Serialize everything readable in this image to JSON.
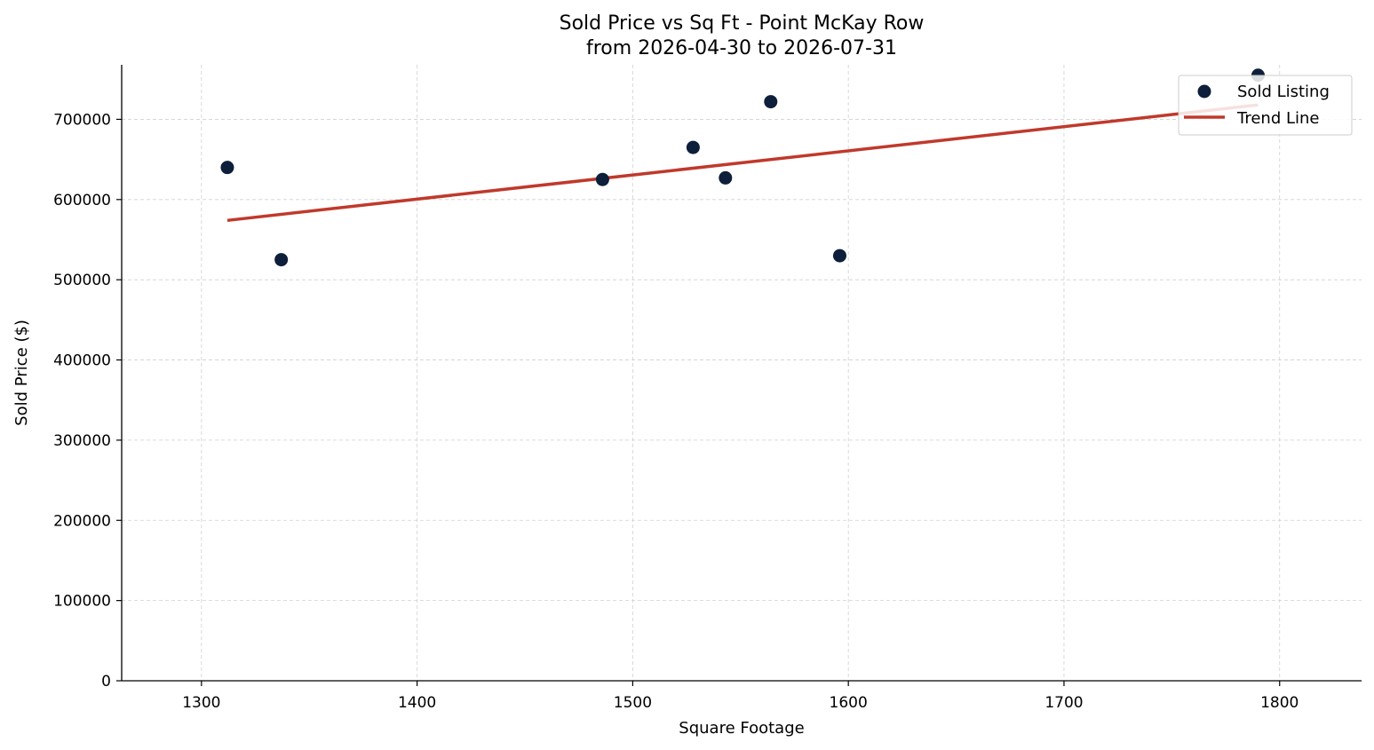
{
  "chart_data": {
    "type": "scatter",
    "title": "Sold Price vs Sq Ft - Point McKay Row",
    "subtitle": "from 2026-04-30 to 2026-07-31",
    "xlabel": "Square Footage",
    "ylabel": "Sold Price ($)",
    "xlim": [
      1263,
      1838
    ],
    "ylim": [
      0,
      768000
    ],
    "xticks": [
      1300,
      1400,
      1500,
      1600,
      1700,
      1800
    ],
    "yticks": [
      0,
      100000,
      200000,
      300000,
      400000,
      500000,
      600000,
      700000
    ],
    "grid": true,
    "legend_position": "top-right",
    "series": [
      {
        "name": "Sold Listing",
        "kind": "scatter",
        "color": "#0d1f3a",
        "points": [
          {
            "x": 1312,
            "y": 640000
          },
          {
            "x": 1337,
            "y": 525000
          },
          {
            "x": 1486,
            "y": 625000
          },
          {
            "x": 1528,
            "y": 665000
          },
          {
            "x": 1543,
            "y": 627000
          },
          {
            "x": 1564,
            "y": 722000
          },
          {
            "x": 1596,
            "y": 530000
          },
          {
            "x": 1790,
            "y": 755000
          }
        ]
      },
      {
        "name": "Trend Line",
        "kind": "line",
        "color": "#c0392b",
        "points": [
          {
            "x": 1312,
            "y": 574000
          },
          {
            "x": 1790,
            "y": 718000
          }
        ]
      }
    ]
  }
}
